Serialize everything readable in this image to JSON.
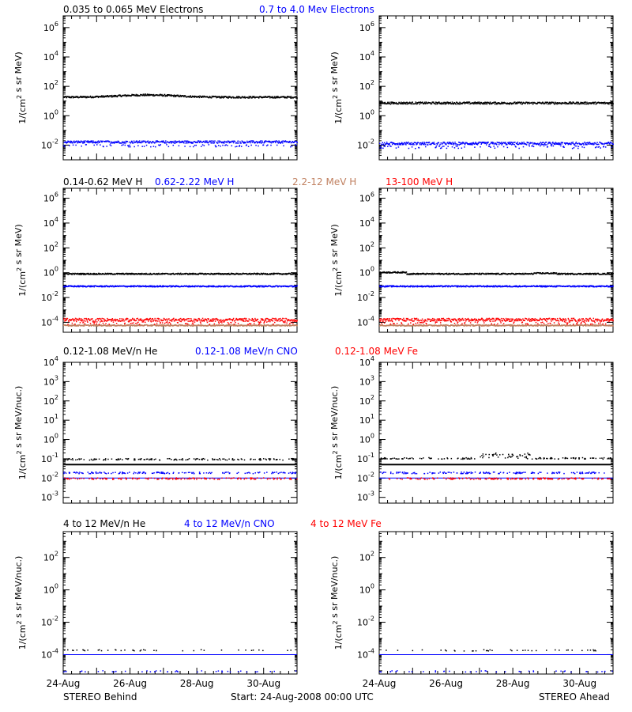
{
  "footer": {
    "left": "STEREO Behind",
    "center": "Start: 24-Aug-2008 00:00 UTC",
    "right": "STEREO Ahead"
  },
  "colors": {
    "black": "#000000",
    "blue": "#0000ff",
    "tan": "#c08060",
    "red": "#ff0000"
  },
  "x_axis": {
    "ticks": [
      "24-Aug",
      "26-Aug",
      "28-Aug",
      "30-Aug"
    ]
  },
  "chart_data": [
    {
      "type": "scatter",
      "title_segments": [
        {
          "text": "0.035 to 0.065 MeV Electrons",
          "color": "black"
        },
        {
          "text": "0.7 to 4.0 Mev Electrons",
          "color": "blue"
        }
      ],
      "ylabel_html": "1/(cm<sup>2</sup> s sr MeV)",
      "log_range": [
        -3,
        6.8
      ],
      "y_ticks": [
        "10^-2",
        "10^0",
        "10^2",
        "10^4",
        "10^6"
      ],
      "x_days": [
        0,
        7
      ],
      "panels": [
        {
          "name": "STEREO Behind",
          "series": [
            {
              "color": "black",
              "level": 1.3,
              "noise": 0.06,
              "hump": 0.15
            },
            {
              "color": "blue",
              "level": -1.75,
              "noise": 0.08
            }
          ]
        },
        {
          "name": "STEREO Ahead",
          "series": [
            {
              "color": "black",
              "level": 0.9,
              "noise": 0.07
            },
            {
              "color": "blue",
              "level": -1.85,
              "noise": 0.09
            }
          ]
        }
      ]
    },
    {
      "type": "scatter",
      "title_segments": [
        {
          "text": "0.14-0.62 MeV H",
          "color": "black"
        },
        {
          "text": "0.62-2.22 MeV H",
          "color": "blue"
        },
        {
          "text": "2.2-12 MeV H",
          "color": "tan"
        },
        {
          "text": "13-100 MeV H",
          "color": "red"
        }
      ],
      "ylabel_html": "1/(cm<sup>2</sup> s sr MeV)",
      "log_range": [
        -4.8,
        6.8
      ],
      "y_ticks": [
        "10^-4",
        "10^-2",
        "10^0",
        "10^2",
        "10^4",
        "10^6"
      ],
      "x_days": [
        0,
        7
      ],
      "panels": [
        {
          "name": "STEREO Behind",
          "series": [
            {
              "color": "black",
              "level": -0.05,
              "noise": 0.05
            },
            {
              "color": "blue",
              "level": -1.05,
              "noise": 0.05
            },
            {
              "color": "tan",
              "level": -4.2,
              "noise": 0.05
            },
            {
              "color": "red",
              "level": -3.75,
              "noise": 0.12
            }
          ]
        },
        {
          "name": "STEREO Ahead",
          "series": [
            {
              "color": "black",
              "level": -0.05,
              "noise": 0.05,
              "bump": 0.12
            },
            {
              "color": "blue",
              "level": -1.05,
              "noise": 0.05
            },
            {
              "color": "tan",
              "level": -4.2,
              "noise": 0.05
            },
            {
              "color": "red",
              "level": -3.75,
              "noise": 0.12
            }
          ]
        }
      ]
    },
    {
      "type": "scatter",
      "title_segments": [
        {
          "text": "0.12-1.08 MeV/n He",
          "color": "black"
        },
        {
          "text": "0.12-1.08 MeV/n CNO",
          "color": "blue"
        },
        {
          "text": "0.12-1.08 MeV Fe",
          "color": "red"
        }
      ],
      "ylabel_html": "1/(cm<sup>2</sup> s sr MeV/nuc.)",
      "log_range": [
        -3.3,
        4
      ],
      "y_ticks": [
        "10^-3",
        "10^-2",
        "10^-1",
        "10^0",
        "10^1",
        "10^2",
        "10^3",
        "10^4"
      ],
      "x_days": [
        0,
        7
      ],
      "panels": [
        {
          "name": "STEREO Behind",
          "series": [
            {
              "color": "black",
              "level": -1.3,
              "line": true,
              "dots": -1.0
            },
            {
              "color": "blue",
              "level": -2.0,
              "line": true,
              "dots": -1.7
            },
            {
              "color": "red",
              "level": -2.0,
              "line": false,
              "dots": -2.0
            }
          ]
        },
        {
          "name": "STEREO Ahead",
          "series": [
            {
              "color": "black",
              "level": -1.3,
              "line": true,
              "dots": -0.95
            },
            {
              "color": "blue",
              "level": -2.0,
              "line": true,
              "dots": -1.7
            },
            {
              "color": "red",
              "level": -2.0,
              "line": false,
              "dots": -2.0
            }
          ]
        }
      ]
    },
    {
      "type": "scatter",
      "title_segments": [
        {
          "text": "4 to 12 MeV/n He",
          "color": "black"
        },
        {
          "text": "4 to 12 MeV/n CNO",
          "color": "blue"
        },
        {
          "text": "4 to 12 MeV Fe",
          "color": "red"
        }
      ],
      "ylabel_html": "1/(cm<sup>2</sup> s sr MeV/nuc.)",
      "log_range": [
        -5.2,
        3.6
      ],
      "y_ticks": [
        "10^-4",
        "10^-2",
        "10^0",
        "10^2"
      ],
      "x_days": [
        0,
        7
      ],
      "panels": [
        {
          "name": "STEREO Behind",
          "series": [
            {
              "color": "blue",
              "level": -4.0,
              "line": true,
              "dots": -5.0
            },
            {
              "color": "black",
              "level": -3.7,
              "line": false,
              "dots": -3.7
            }
          ]
        },
        {
          "name": "STEREO Ahead",
          "series": [
            {
              "color": "blue",
              "level": -4.0,
              "line": true,
              "dots": -5.0
            },
            {
              "color": "black",
              "level": -3.7,
              "line": false,
              "dots": -3.7
            }
          ]
        }
      ]
    }
  ]
}
